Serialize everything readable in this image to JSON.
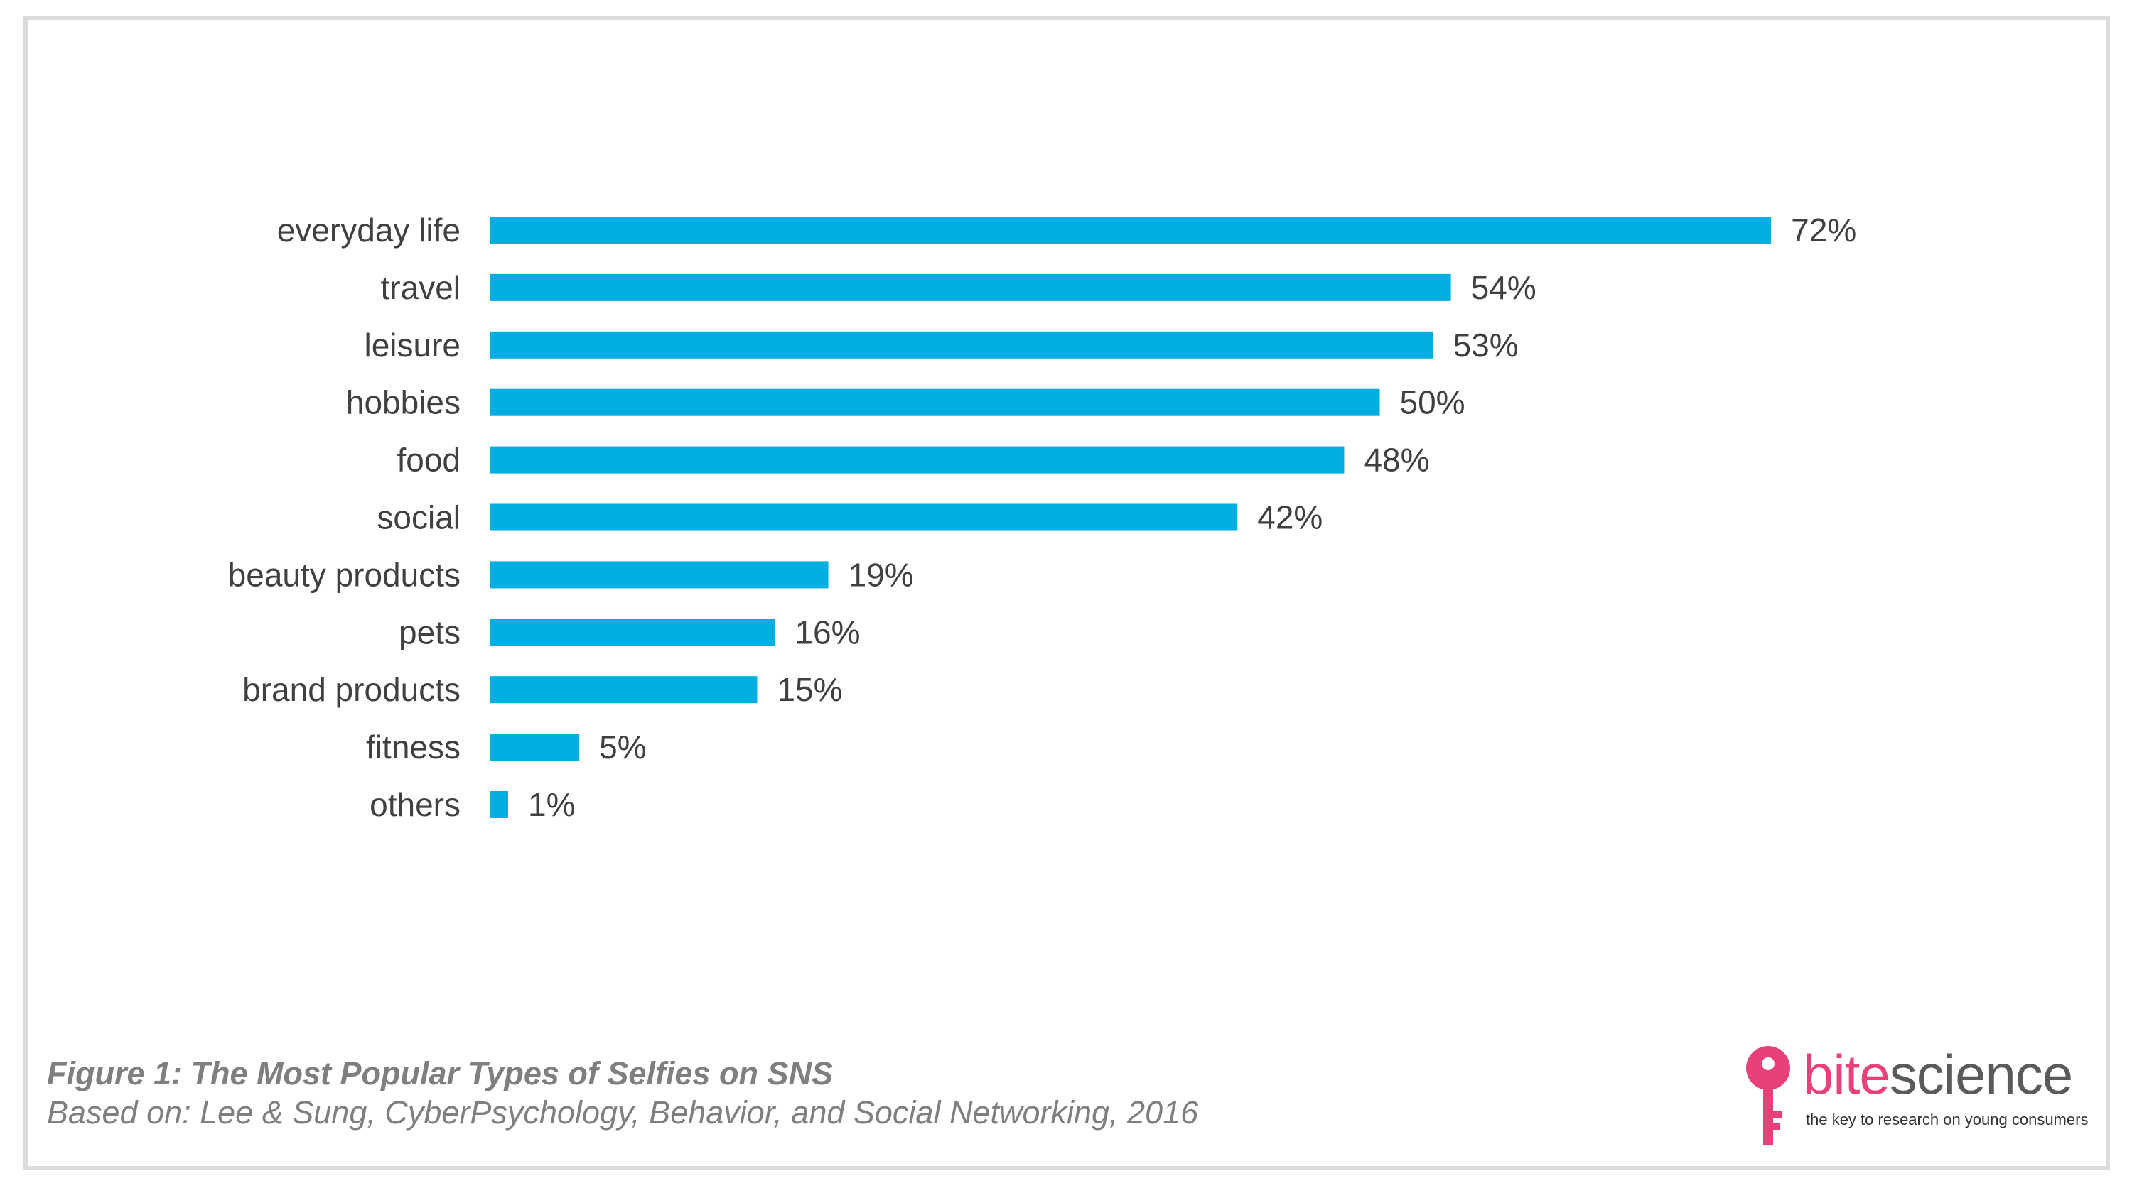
{
  "chart_data": {
    "type": "bar",
    "orientation": "horizontal",
    "categories": [
      "everyday life",
      "travel",
      "leisure",
      "hobbies",
      "food",
      "social",
      "beauty products",
      "pets",
      "brand products",
      "fitness",
      "others"
    ],
    "values": [
      72,
      54,
      53,
      50,
      48,
      42,
      19,
      16,
      15,
      5,
      1
    ],
    "value_labels": [
      "72%",
      "54%",
      "53%",
      "50%",
      "48%",
      "42%",
      "19%",
      "16%",
      "15%",
      "5%",
      "1%"
    ],
    "unit": "%",
    "xlim": [
      0,
      72
    ],
    "grid": false,
    "legend": "none",
    "bar_color": "#00aee2"
  },
  "caption": {
    "title": "Figure 1: The Most Popular Types of Selfies on SNS",
    "source": "Based on: Lee & Sung, CyberPsychology, Behavior, and Social Networking, 2016"
  },
  "logo": {
    "word_part_a": "bite",
    "word_part_b": "science",
    "tagline": "the key to research on young consumers",
    "icon": "key-icon",
    "brand_color": "#e8407a"
  }
}
